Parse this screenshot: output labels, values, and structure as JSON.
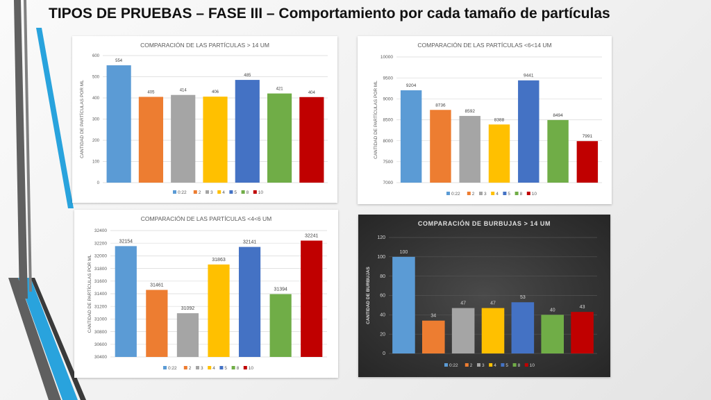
{
  "slide": {
    "title": "TIPOS DE PRUEBAS – FASE III – Comportamiento por cada tamaño de partículas"
  },
  "legend_labels": [
    "0:22",
    "2",
    "3",
    "4",
    "5",
    "8",
    "10"
  ],
  "series_colors": [
    "#5B9BD5",
    "#ED7D31",
    "#A5A5A5",
    "#FFC000",
    "#4472C4",
    "#70AD47",
    "#C00000"
  ],
  "chart_data": [
    {
      "type": "bar",
      "title": "COMPARACIÓN DE LAS PARTÍCULAS > 14 UM",
      "ylabel": "CANTIDAD DE PARTÍCULAS POR ML",
      "categories": [
        "0:22",
        "2",
        "3",
        "4",
        "5",
        "8",
        "10"
      ],
      "values": [
        554,
        405,
        414,
        406,
        485,
        421,
        404
      ],
      "ylim": [
        0,
        600
      ],
      "yticks": [
        0,
        100,
        200,
        300,
        400,
        500,
        600
      ],
      "grid": true,
      "legend_position": "bottom",
      "theme": "light"
    },
    {
      "type": "bar",
      "title": "COMPARACIÓN DE LAS PARTÍCULAS <6<14 UM",
      "ylabel": "CANTIDAD DE PARTÍCULAS POR ML",
      "categories": [
        "0:22",
        "2",
        "3",
        "4",
        "5",
        "8",
        "10"
      ],
      "values": [
        9204,
        8736,
        8592,
        8388,
        9441,
        8494,
        7991
      ],
      "ylim": [
        7000,
        10000
      ],
      "yticks": [
        7000,
        7500,
        8000,
        8500,
        9000,
        9500,
        10000
      ],
      "grid": true,
      "legend_position": "bottom",
      "theme": "light"
    },
    {
      "type": "bar",
      "title": "COMPARACIÓN DE LAS PARTÍCULAS <4<6 UM",
      "ylabel": "CANTIDAD DE PARTÍCULAS POR ML",
      "categories": [
        "0:22",
        "2",
        "3",
        "4",
        "5",
        "8",
        "10"
      ],
      "values": [
        32154,
        31461,
        31092,
        31863,
        32141,
        31394,
        32241
      ],
      "ylim": [
        30400,
        32400
      ],
      "yticks": [
        30400,
        30600,
        30800,
        31000,
        31200,
        31400,
        31600,
        31800,
        32000,
        32200,
        32400
      ],
      "grid": true,
      "legend_position": "bottom",
      "theme": "light"
    },
    {
      "type": "bar",
      "title": "COMPARACIÓN DE BURBUJAS > 14 UM",
      "ylabel": "CANTIDAD DE BURBUJAS",
      "categories": [
        "0:22",
        "2",
        "3",
        "4",
        "5",
        "8",
        "10"
      ],
      "values": [
        100,
        34,
        47,
        47,
        53,
        40,
        43
      ],
      "ylim": [
        0,
        120
      ],
      "yticks": [
        0,
        20,
        40,
        60,
        80,
        100,
        120
      ],
      "grid": true,
      "legend_position": "bottom",
      "theme": "dark"
    }
  ]
}
